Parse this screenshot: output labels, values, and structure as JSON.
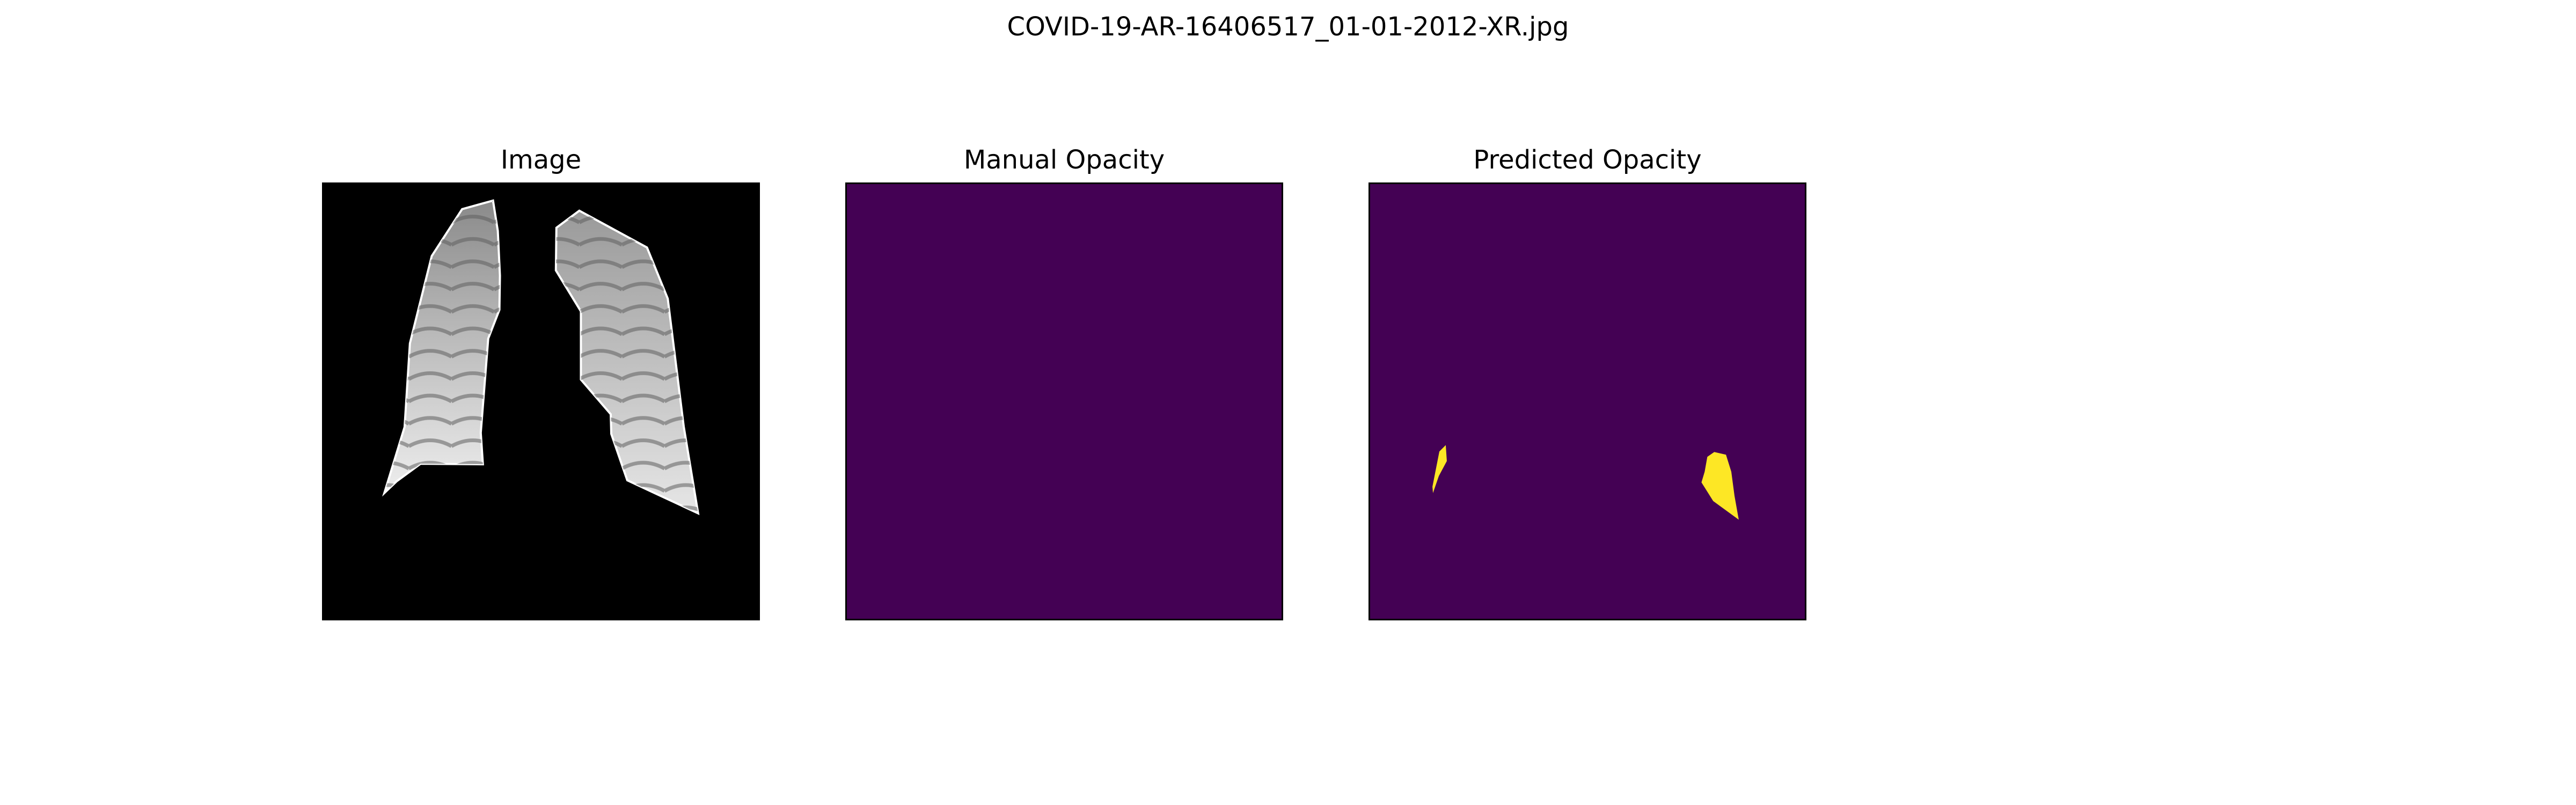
{
  "figure": {
    "title": "COVID-19-AR-16406517_01-01-2012-XR.jpg"
  },
  "panels": [
    {
      "title": "Image"
    },
    {
      "title": "Manual Opacity"
    },
    {
      "title": "Predicted Opacity"
    }
  ],
  "colors": {
    "background": "#000000",
    "mask_background": "#440154",
    "mask_foreground": "#fde725"
  }
}
